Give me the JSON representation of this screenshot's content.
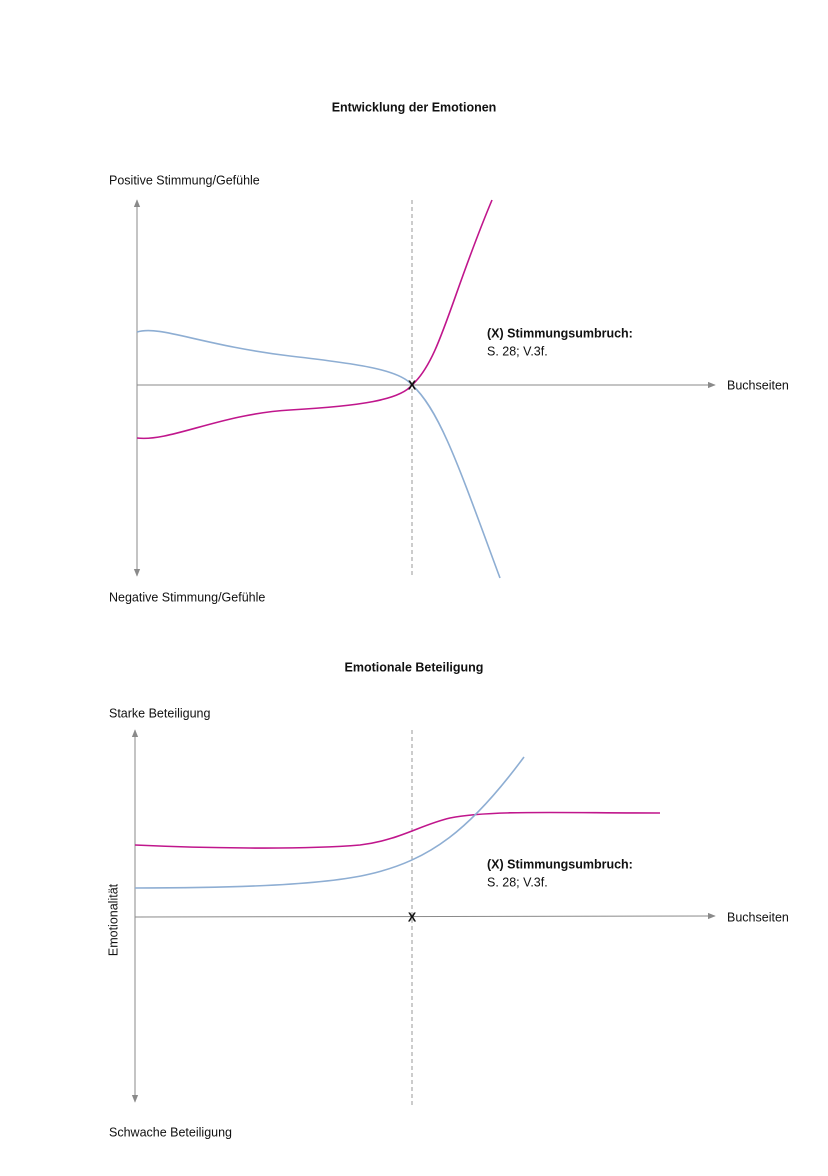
{
  "diagrams": [
    {
      "title": "Entwicklung der Emotionen",
      "y_top_label": "Positive Stimmung/Gefühle",
      "y_bottom_label": "Negative Stimmung/Gefühle",
      "x_label": "Buchseiten",
      "marker": "X",
      "annotation": {
        "title": "(X) Stimmungsumbruch:",
        "text": "S. 28; V.3f."
      }
    },
    {
      "title": "Emotionale Beteiligung",
      "y_top_label": "Starke Beteiligung",
      "y_bottom_label": "Schwache Beteiligung",
      "y_axis_label": "Emotionalität",
      "x_label": "Buchseiten",
      "marker": "X",
      "annotation": {
        "title": "(X) Stimmungsumbruch:",
        "text": "S. 28; V.3f."
      }
    }
  ]
}
